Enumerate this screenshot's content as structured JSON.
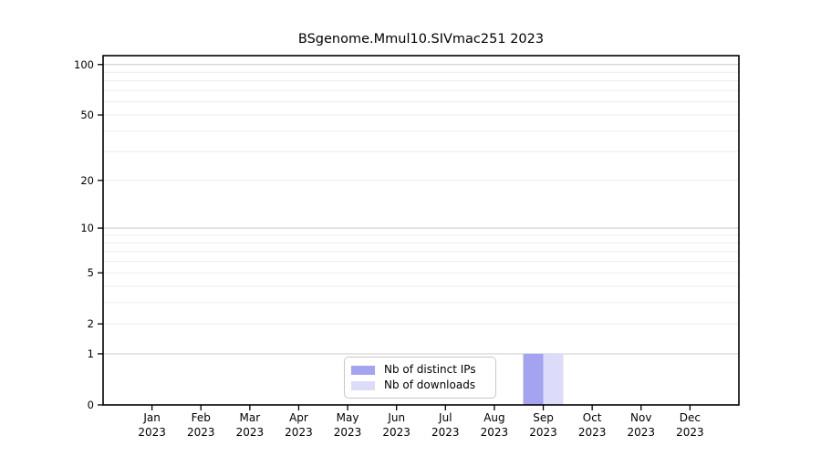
{
  "figure": {
    "title": "BSgenome.Mmul10.SIVmac251 2023"
  },
  "chart_data": {
    "type": "bar",
    "title": "BSgenome.Mmul10.SIVmac251 2023",
    "categories": [
      "Jan 2023",
      "Feb 2023",
      "Mar 2023",
      "Apr 2023",
      "May 2023",
      "Jun 2023",
      "Jul 2023",
      "Aug 2023",
      "Sep 2023",
      "Oct 2023",
      "Nov 2023",
      "Dec 2023"
    ],
    "category_months": [
      "Jan",
      "Feb",
      "Mar",
      "Apr",
      "May",
      "Jun",
      "Jul",
      "Aug",
      "Sep",
      "Oct",
      "Nov",
      "Dec"
    ],
    "category_year": "2023",
    "series": [
      {
        "name": "Nb of distinct IPs",
        "color": "#a3a3f0",
        "values": [
          0,
          0,
          0,
          0,
          0,
          0,
          0,
          0,
          1,
          0,
          0,
          0
        ]
      },
      {
        "name": "Nb of downloads",
        "color": "#dcdcfa",
        "values": [
          0,
          0,
          0,
          0,
          0,
          0,
          0,
          0,
          1,
          0,
          0,
          0
        ]
      }
    ],
    "xlabel": "",
    "ylabel": "",
    "yscale": "log1p",
    "yticks": [
      0,
      1,
      2,
      5,
      10,
      20,
      50,
      100
    ],
    "yticks_minor": [
      2,
      3,
      4,
      5,
      6,
      7,
      8,
      9,
      20,
      30,
      40,
      50,
      60,
      70,
      80,
      90
    ],
    "yticks_major_grid": [
      1,
      10,
      100
    ],
    "ylim": [
      0,
      113
    ],
    "grid": "horizontal",
    "legend_position": "lower-center-inside"
  }
}
